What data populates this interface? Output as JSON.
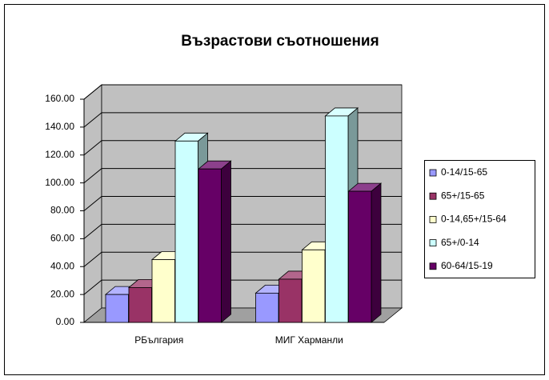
{
  "chart_data": {
    "type": "bar3d",
    "title": "Възрастови съотношения",
    "categories": [
      "РБългария",
      "МИГ Харманли"
    ],
    "series": [
      {
        "name": "0-14/15-65",
        "color": "#9999ff",
        "values": [
          20,
          21
        ]
      },
      {
        "name": "65+/15-65",
        "color": "#993366",
        "values": [
          25,
          31
        ]
      },
      {
        "name": "0-14,65+/15-64",
        "color": "#ffffcc",
        "values": [
          45,
          52
        ]
      },
      {
        "name": "65+/0-14",
        "color": "#ccffff",
        "values": [
          130,
          148
        ]
      },
      {
        "name": "60-64/15-19",
        "color": "#660066",
        "values": [
          110,
          94
        ]
      }
    ],
    "ylim": [
      0,
      160
    ],
    "yticks": [
      {
        "value": 0,
        "label": "0.00"
      },
      {
        "value": 20,
        "label": "20.00"
      },
      {
        "value": 40,
        "label": "40.00"
      },
      {
        "value": 60,
        "label": "60.00"
      },
      {
        "value": 80,
        "label": "80.00"
      },
      {
        "value": 100,
        "label": "100.00"
      },
      {
        "value": 120,
        "label": "120.00"
      },
      {
        "value": 140,
        "label": "140.00"
      },
      {
        "value": 160,
        "label": "160.00"
      }
    ],
    "grid": true,
    "legend": "right"
  }
}
